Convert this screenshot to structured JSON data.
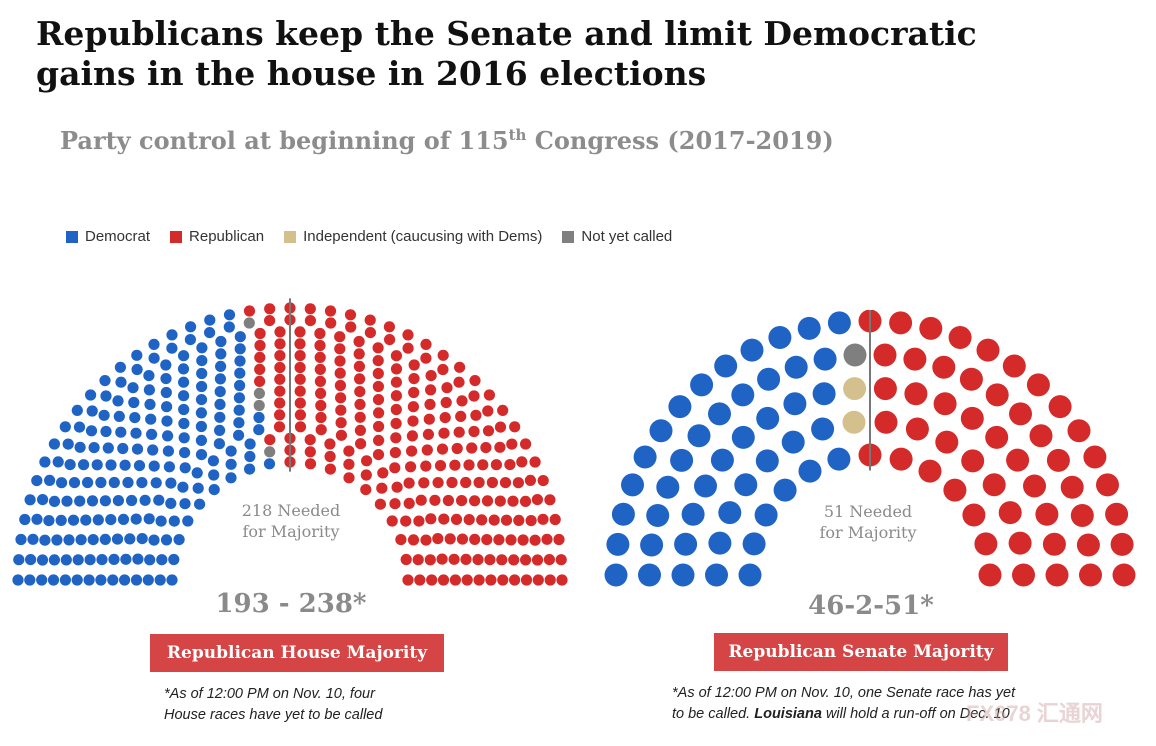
{
  "title": "Republicans keep the Senate and limit Democratic gains in the house in 2016 elections",
  "subtitle": {
    "pre": "Party control at beginning of 115",
    "sup": "th",
    "post": " Congress (2017-2019)"
  },
  "legend": [
    {
      "label": "Democrat",
      "color": "#1f64c4"
    },
    {
      "label": "Republican",
      "color": "#d42a2a"
    },
    {
      "label": "Independent (caucusing with Dems)",
      "color": "#d4c08c"
    },
    {
      "label": "Not yet called",
      "color": "#7f7f7f"
    }
  ],
  "house": {
    "needed_line1": "218 Needed",
    "needed_line2": "for Majority",
    "tally": "193 - 238*",
    "majority_label": "Republican House Majority",
    "footnote_line1": "*As of 12:00 PM on Nov. 10, four",
    "footnote_line2": "House races have yet to be called"
  },
  "senate": {
    "needed_line1": "51 Needed",
    "needed_line2": "for Majority",
    "tally": "46-2-51*",
    "majority_label": "Republican Senate Majority",
    "footnote_line1": "*As of 12:00 PM on Nov. 10, one Senate race has yet",
    "footnote_line2_pre": "to be called. ",
    "footnote_line2_bold": "Louisiana",
    "footnote_line2_post": " will hold a run-off on Dec. 10"
  },
  "watermark": "FX678 汇通网",
  "chart_data": [
    {
      "type": "parliament",
      "chamber": "House",
      "seats": [
        {
          "party": "Democrat",
          "count": 193,
          "color": "#1f64c4"
        },
        {
          "party": "Not yet called",
          "count": 4,
          "color": "#7f7f7f"
        },
        {
          "party": "Republican",
          "count": 238,
          "color": "#d42a2a"
        }
      ],
      "total": 435,
      "majority_needed": 218
    },
    {
      "type": "parliament",
      "chamber": "Senate",
      "seats": [
        {
          "party": "Democrat",
          "count": 46,
          "color": "#1f64c4"
        },
        {
          "party": "Independent (caucusing with Dems)",
          "count": 2,
          "color": "#d4c08c"
        },
        {
          "party": "Not yet called",
          "count": 1,
          "color": "#7f7f7f"
        },
        {
          "party": "Republican",
          "count": 51,
          "color": "#d42a2a"
        }
      ],
      "total": 100,
      "majority_needed": 51
    }
  ]
}
